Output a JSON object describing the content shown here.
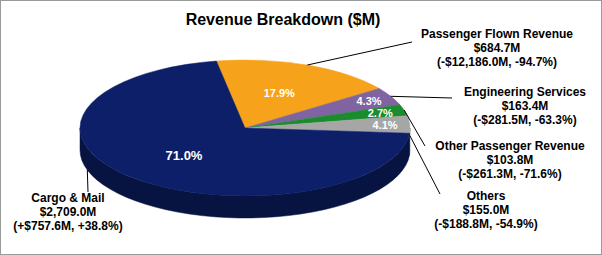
{
  "chart_data": {
    "type": "pie",
    "title": "Revenue Breakdown ($M)",
    "categories": [
      "Passenger Flown Revenue",
      "Engineering Services",
      "Other Passenger Revenue",
      "Others",
      "Cargo & Mail"
    ],
    "values": [
      17.9,
      4.3,
      2.7,
      4.1,
      71.0
    ],
    "value_labels": [
      "17.9%",
      "4.3%",
      "2.7%",
      "4.1%",
      "71.0%"
    ],
    "colors": [
      "#f7a21b",
      "#8064a2",
      "#1a8c2e",
      "#a6a6a6",
      "#0c1f68"
    ],
    "data_labels": true,
    "annotations": [
      [
        "$684.7M",
        "(-$12,186.0M, -94.7%)"
      ],
      [
        "$163.4M",
        "(-$281.5M, -63.3%)"
      ],
      [
        "$103.8M",
        "(-$261.3M, -71.6%)"
      ],
      [
        "$155.0M",
        "(-$188.8M, -54.9%)"
      ],
      [
        "$2,709.0M",
        "(+$757.6M, +38.8%)"
      ]
    ]
  }
}
